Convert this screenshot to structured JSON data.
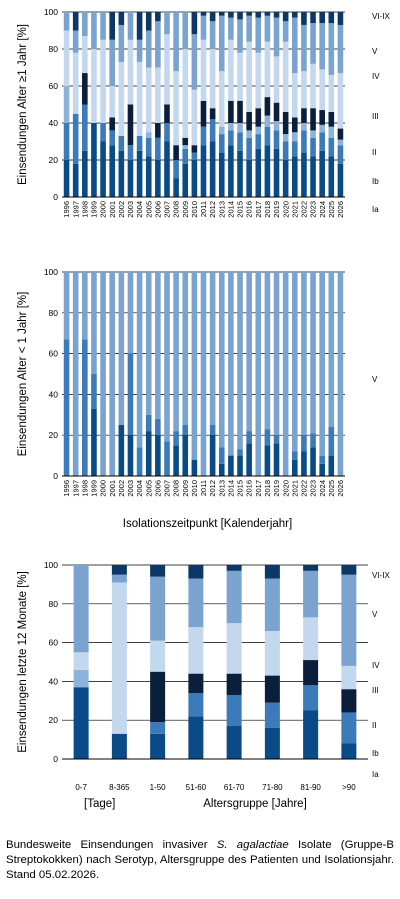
{
  "colors": {
    "Ia": "#0a4a86",
    "Ib": "#3d7ab9",
    "II": "#8db3da",
    "III": "#0b1f3c",
    "IV": "#c3d8ee",
    "V": "#7aa3cf",
    "VI-IX": "#0c3766"
  },
  "caption": {
    "pre": "Bundesweite Einsendungen invasiver ",
    "species": "S. agalactiae",
    "post": " Isolate (Gruppe-B Streptokokken) nach Serotyp, Altersgruppe des Patienten und Isolationsjahr. Stand 05.02.2026."
  },
  "chart_data": [
    {
      "type": "bar",
      "stacked": true,
      "ylabel": "Einsendungen  Alter ≥1 Jahr [%]",
      "xlabel": "",
      "ylim": [
        0,
        100
      ],
      "yticks": [
        0,
        20,
        40,
        60,
        80,
        100
      ],
      "grid": true,
      "legend": "right",
      "categories": [
        "1996",
        "1997",
        "1998",
        "1999",
        "2000",
        "2001",
        "2002",
        "2003",
        "2004",
        "2005",
        "2006",
        "2007",
        "2008",
        "2009",
        "2010",
        "2011",
        "2012",
        "2013",
        "2014",
        "2015",
        "2016",
        "2017",
        "2018",
        "2019",
        "2020",
        "2021",
        "2022",
        "2023",
        "2024",
        "2025",
        "2026"
      ],
      "series": [
        {
          "name": "Ia",
          "color": "Ia",
          "values": [
            20,
            18,
            25,
            40,
            30,
            28,
            25,
            20,
            25,
            22,
            20,
            30,
            10,
            18,
            20,
            28,
            30,
            24,
            28,
            25,
            20,
            26,
            28,
            26,
            20,
            22,
            24,
            22,
            25,
            22,
            18
          ]
        },
        {
          "name": "Ib",
          "color": "Ib",
          "values": [
            20,
            27,
            25,
            0,
            10,
            8,
            8,
            8,
            8,
            10,
            12,
            10,
            10,
            8,
            4,
            10,
            12,
            10,
            8,
            10,
            12,
            8,
            10,
            10,
            10,
            8,
            12,
            10,
            10,
            10,
            10
          ]
        },
        {
          "name": "II",
          "color": "II",
          "values": [
            20,
            0,
            0,
            0,
            0,
            0,
            0,
            0,
            0,
            3,
            0,
            0,
            0,
            2,
            0,
            0,
            0,
            4,
            4,
            5,
            4,
            4,
            6,
            5,
            4,
            5,
            4,
            4,
            4,
            6,
            3
          ]
        },
        {
          "name": "III",
          "color": "III",
          "values": [
            0,
            0,
            17,
            0,
            0,
            7,
            0,
            22,
            0,
            0,
            8,
            10,
            8,
            4,
            4,
            14,
            6,
            0,
            12,
            12,
            10,
            10,
            10,
            10,
            12,
            8,
            8,
            12,
            8,
            8,
            6
          ]
        },
        {
          "name": "IV",
          "color": "IV",
          "values": [
            30,
            33,
            20,
            40,
            45,
            17,
            40,
            35,
            40,
            35,
            30,
            38,
            40,
            48,
            30,
            33,
            32,
            30,
            33,
            26,
            38,
            30,
            30,
            25,
            38,
            24,
            20,
            24,
            22,
            20,
            30
          ]
        },
        {
          "name": "V",
          "color": "V",
          "values": [
            10,
            12,
            13,
            20,
            15,
            25,
            20,
            15,
            12,
            20,
            25,
            12,
            32,
            20,
            30,
            13,
            15,
            30,
            12,
            18,
            14,
            19,
            14,
            21,
            11,
            30,
            25,
            22,
            25,
            28,
            26
          ]
        },
        {
          "name": "VI-IX",
          "color": "VI-IX",
          "values": [
            0,
            10,
            0,
            0,
            0,
            15,
            7,
            0,
            15,
            10,
            5,
            0,
            0,
            0,
            12,
            2,
            5,
            2,
            3,
            4,
            2,
            3,
            2,
            3,
            5,
            3,
            7,
            6,
            6,
            6,
            7
          ]
        }
      ],
      "side_labels": [
        "VI-IX",
        "V",
        "IV",
        "III",
        "II",
        "Ib",
        "Ia"
      ]
    },
    {
      "type": "bar",
      "stacked": true,
      "ylabel": "Einsendungen Alter < 1 Jahr [%]",
      "xlabel": "Isolationszeitpunkt  [Kalenderjahr]",
      "ylim": [
        0,
        100
      ],
      "yticks": [
        0,
        20,
        40,
        60,
        80,
        100
      ],
      "grid": true,
      "legend": "right",
      "categories": [
        "1996",
        "1997",
        "1998",
        "1999",
        "2000",
        "2001",
        "2002",
        "2003",
        "2004",
        "2005",
        "2006",
        "2007",
        "2008",
        "2009",
        "2010",
        "2011",
        "2012",
        "2013",
        "2014",
        "2015",
        "2016",
        "2017",
        "2018",
        "2019",
        "2020",
        "2021",
        "2022",
        "2023",
        "2024",
        "2025",
        "2026"
      ],
      "series": [
        {
          "name": "Ia",
          "color": "Ia",
          "values": [
            0,
            0,
            0,
            33,
            0,
            0,
            25,
            20,
            0,
            22,
            20,
            0,
            15,
            20,
            8,
            0,
            20,
            6,
            10,
            10,
            16,
            0,
            15,
            16,
            0,
            8,
            12,
            14,
            6,
            10,
            0
          ]
        },
        {
          "name": "Ib",
          "color": "Ib",
          "values": [
            67,
            0,
            67,
            17,
            0,
            0,
            0,
            40,
            14,
            8,
            8,
            17,
            7,
            5,
            0,
            0,
            5,
            8,
            0,
            3,
            6,
            0,
            8,
            4,
            0,
            4,
            8,
            7,
            4,
            14,
            0
          ]
        },
        {
          "name": "II",
          "color": "II",
          "values": [
            0,
            0,
            0,
            0,
            0,
            0,
            0,
            0,
            0,
            0,
            0,
            0,
            0,
            0,
            0,
            0,
            0,
            0,
            0,
            0,
            0,
            0,
            0,
            0,
            0,
            0,
            0,
            0,
            0,
            0,
            0
          ]
        },
        {
          "name": "III",
          "color": "III",
          "values": [
            0,
            0,
            0,
            0,
            0,
            0,
            0,
            0,
            0,
            0,
            0,
            0,
            0,
            0,
            0,
            0,
            0,
            0,
            0,
            0,
            0,
            0,
            0,
            0,
            0,
            0,
            0,
            0,
            0,
            0,
            0
          ]
        },
        {
          "name": "IV",
          "color": "IV",
          "values": [
            0,
            0,
            0,
            0,
            0,
            0,
            0,
            0,
            0,
            0,
            0,
            0,
            0,
            0,
            0,
            0,
            0,
            0,
            0,
            0,
            0,
            0,
            0,
            0,
            0,
            0,
            0,
            0,
            0,
            0,
            0
          ]
        },
        {
          "name": "V",
          "color": "V",
          "values": [
            33,
            100,
            33,
            50,
            100,
            100,
            75,
            40,
            86,
            70,
            72,
            83,
            78,
            75,
            92,
            100,
            75,
            86,
            90,
            87,
            78,
            100,
            77,
            80,
            100,
            88,
            80,
            79,
            90,
            76,
            100
          ]
        },
        {
          "name": "VI-IX",
          "color": "VI-IX",
          "values": [
            0,
            0,
            0,
            0,
            0,
            0,
            0,
            0,
            0,
            0,
            0,
            0,
            0,
            0,
            0,
            0,
            0,
            0,
            0,
            0,
            0,
            0,
            0,
            0,
            0,
            0,
            0,
            0,
            0,
            0,
            0
          ]
        }
      ],
      "side_labels": [
        "V"
      ]
    },
    {
      "type": "bar",
      "stacked": true,
      "ylabel": "Einsendungen  letzte 12 Monate [%]",
      "xlabel": "Altersgruppe  [Jahre]",
      "xlabel_left": "[Tage]",
      "ylim": [
        0,
        100
      ],
      "yticks": [
        0,
        20,
        40,
        60,
        80,
        100
      ],
      "grid": true,
      "legend": "right",
      "categories": [
        "0-7",
        "8-365",
        "1-50",
        "51-60",
        "61-70",
        "71-80",
        "81-90",
        ">90"
      ],
      "series": [
        {
          "name": "Ia",
          "color": "Ia",
          "values": [
            37,
            13,
            13,
            22,
            17,
            16,
            25,
            8
          ]
        },
        {
          "name": "Ib",
          "color": "Ib",
          "values": [
            0,
            0,
            6,
            12,
            16,
            13,
            13,
            16
          ]
        },
        {
          "name": "II",
          "color": "II",
          "values": [
            9,
            0,
            0,
            0,
            0,
            0,
            0,
            0
          ]
        },
        {
          "name": "III",
          "color": "III",
          "values": [
            0,
            0,
            26,
            10,
            11,
            14,
            13,
            12
          ]
        },
        {
          "name": "IV",
          "color": "IV",
          "values": [
            9,
            78,
            16,
            24,
            26,
            23,
            22,
            12
          ]
        },
        {
          "name": "V",
          "color": "V",
          "values": [
            45,
            4,
            33,
            25,
            27,
            27,
            24,
            47
          ]
        },
        {
          "name": "VI-IX",
          "color": "VI-IX",
          "values": [
            0,
            5,
            6,
            7,
            3,
            7,
            3,
            5
          ]
        }
      ],
      "side_labels": [
        "VI-IX",
        "V",
        "IV",
        "III",
        "II",
        "Ib",
        "Ia"
      ]
    }
  ]
}
